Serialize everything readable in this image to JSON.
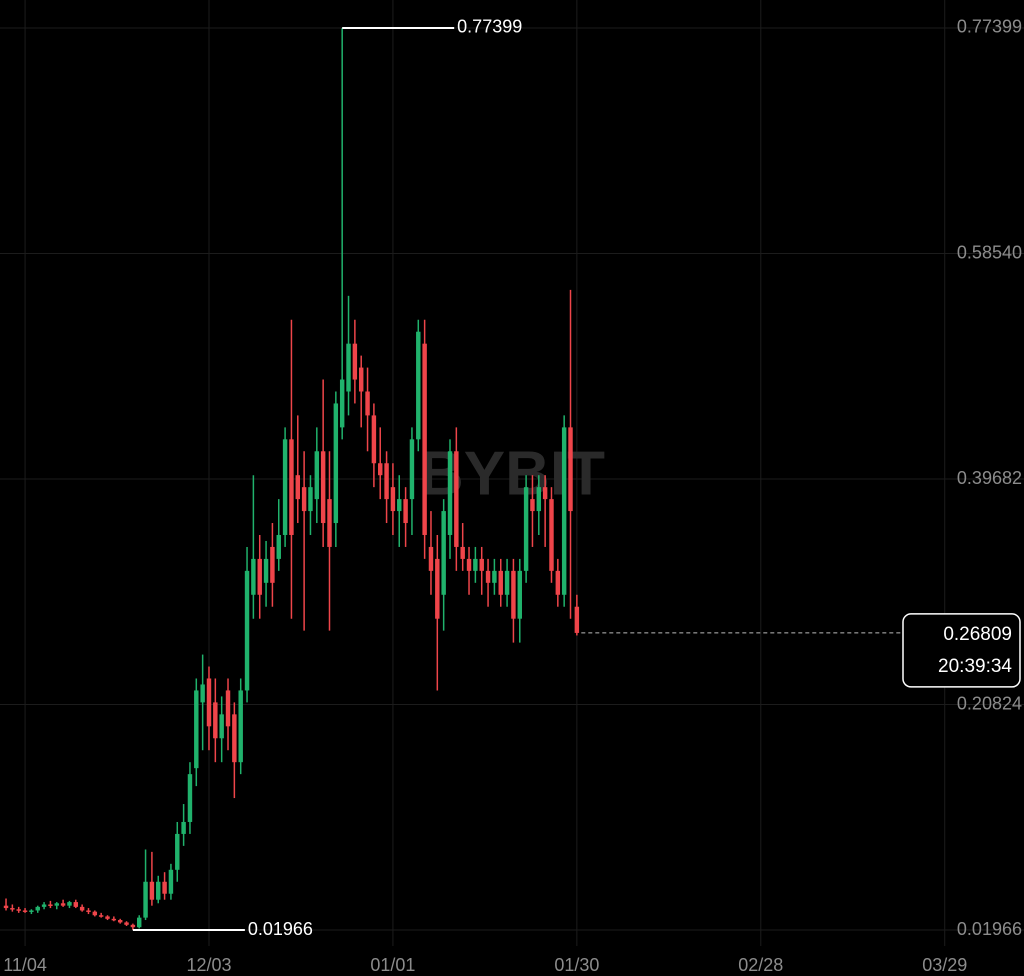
{
  "chart_data": {
    "type": "candlestick",
    "up_color": "#20b26c",
    "down_color": "#ef454a",
    "ylim": [
      0.00628,
      0.7974
    ],
    "yticks": [
      0.01966,
      0.20824,
      0.39682,
      {
        "value": 0.5854,
        "label": "0.58540"
      },
      0.77399
    ],
    "xlim": [
      -0.95,
      160.5
    ],
    "xticks": [
      {
        "value": 3,
        "label": "11/04"
      },
      {
        "value": 32,
        "label": "12/03"
      },
      {
        "value": 61,
        "label": "01/01"
      },
      {
        "value": 90,
        "label": "01/30"
      },
      {
        "value": 119,
        "label": "02/28"
      },
      {
        "value": 148,
        "label": "03/29"
      }
    ],
    "grid": true,
    "watermark": "BYBIT",
    "high_marker": {
      "value": 0.77399,
      "index": 53
    },
    "low_marker": {
      "value": 0.01966,
      "index": 20
    },
    "last_price": 0.26809,
    "countdown": "20:39:34",
    "ohlc": [
      [
        0.04,
        0.046,
        0.036,
        0.038
      ],
      [
        0.038,
        0.041,
        0.035,
        0.037
      ],
      [
        0.037,
        0.039,
        0.034,
        0.036
      ],
      [
        0.036,
        0.038,
        0.034,
        0.035
      ],
      [
        0.035,
        0.037,
        0.033,
        0.036
      ],
      [
        0.036,
        0.04,
        0.034,
        0.039
      ],
      [
        0.039,
        0.043,
        0.037,
        0.041
      ],
      [
        0.041,
        0.044,
        0.038,
        0.04
      ],
      [
        0.04,
        0.043,
        0.037,
        0.042
      ],
      [
        0.042,
        0.045,
        0.039,
        0.04
      ],
      [
        0.04,
        0.044,
        0.038,
        0.043
      ],
      [
        0.043,
        0.045,
        0.038,
        0.039
      ],
      [
        0.039,
        0.041,
        0.035,
        0.036
      ],
      [
        0.036,
        0.038,
        0.033,
        0.035
      ],
      [
        0.035,
        0.036,
        0.031,
        0.032
      ],
      [
        0.032,
        0.034,
        0.03,
        0.031
      ],
      [
        0.031,
        0.032,
        0.028,
        0.029
      ],
      [
        0.029,
        0.031,
        0.027,
        0.028
      ],
      [
        0.028,
        0.029,
        0.025,
        0.026
      ],
      [
        0.026,
        0.027,
        0.023,
        0.024
      ],
      [
        0.024,
        0.025,
        0.01966,
        0.022
      ],
      [
        0.022,
        0.032,
        0.021,
        0.03
      ],
      [
        0.03,
        0.087,
        0.028,
        0.06
      ],
      [
        0.06,
        0.085,
        0.04,
        0.045
      ],
      [
        0.045,
        0.065,
        0.042,
        0.06
      ],
      [
        0.06,
        0.068,
        0.045,
        0.05
      ],
      [
        0.05,
        0.075,
        0.045,
        0.07
      ],
      [
        0.07,
        0.11,
        0.06,
        0.1
      ],
      [
        0.1,
        0.125,
        0.09,
        0.11
      ],
      [
        0.11,
        0.16,
        0.1,
        0.15
      ],
      [
        0.155,
        0.23,
        0.14,
        0.22
      ],
      [
        0.21,
        0.25,
        0.17,
        0.225
      ],
      [
        0.23,
        0.24,
        0.17,
        0.19
      ],
      [
        0.21,
        0.23,
        0.16,
        0.18
      ],
      [
        0.18,
        0.215,
        0.16,
        0.2
      ],
      [
        0.22,
        0.23,
        0.17,
        0.19
      ],
      [
        0.2,
        0.21,
        0.13,
        0.16
      ],
      [
        0.16,
        0.23,
        0.15,
        0.22
      ],
      [
        0.22,
        0.34,
        0.21,
        0.32
      ],
      [
        0.3,
        0.4,
        0.28,
        0.33
      ],
      [
        0.33,
        0.35,
        0.28,
        0.3
      ],
      [
        0.31,
        0.345,
        0.29,
        0.33
      ],
      [
        0.34,
        0.36,
        0.29,
        0.31
      ],
      [
        0.33,
        0.38,
        0.32,
        0.35
      ],
      [
        0.35,
        0.44,
        0.34,
        0.43
      ],
      [
        0.43,
        0.53,
        0.28,
        0.35
      ],
      [
        0.4,
        0.45,
        0.36,
        0.38
      ],
      [
        0.39,
        0.42,
        0.27,
        0.37
      ],
      [
        0.37,
        0.4,
        0.35,
        0.39
      ],
      [
        0.38,
        0.44,
        0.36,
        0.42
      ],
      [
        0.42,
        0.48,
        0.34,
        0.36
      ],
      [
        0.38,
        0.42,
        0.27,
        0.34
      ],
      [
        0.36,
        0.47,
        0.34,
        0.46
      ],
      [
        0.44,
        0.77399,
        0.43,
        0.48
      ],
      [
        0.47,
        0.55,
        0.45,
        0.51
      ],
      [
        0.51,
        0.53,
        0.46,
        0.48
      ],
      [
        0.49,
        0.5,
        0.44,
        0.47
      ],
      [
        0.47,
        0.49,
        0.42,
        0.45
      ],
      [
        0.45,
        0.46,
        0.39,
        0.41
      ],
      [
        0.41,
        0.44,
        0.38,
        0.4
      ],
      [
        0.41,
        0.42,
        0.36,
        0.38
      ],
      [
        0.39,
        0.41,
        0.35,
        0.37
      ],
      [
        0.37,
        0.4,
        0.34,
        0.38
      ],
      [
        0.38,
        0.39,
        0.34,
        0.36
      ],
      [
        0.38,
        0.44,
        0.35,
        0.43
      ],
      [
        0.43,
        0.53,
        0.42,
        0.52
      ],
      [
        0.51,
        0.53,
        0.33,
        0.35
      ],
      [
        0.34,
        0.37,
        0.3,
        0.32
      ],
      [
        0.33,
        0.35,
        0.22,
        0.28
      ],
      [
        0.3,
        0.38,
        0.27,
        0.37
      ],
      [
        0.35,
        0.43,
        0.33,
        0.42
      ],
      [
        0.42,
        0.44,
        0.32,
        0.34
      ],
      [
        0.34,
        0.36,
        0.32,
        0.33
      ],
      [
        0.33,
        0.34,
        0.3,
        0.32
      ],
      [
        0.32,
        0.34,
        0.31,
        0.33
      ],
      [
        0.33,
        0.34,
        0.3,
        0.32
      ],
      [
        0.32,
        0.33,
        0.29,
        0.31
      ],
      [
        0.31,
        0.33,
        0.3,
        0.32
      ],
      [
        0.32,
        0.33,
        0.29,
        0.3
      ],
      [
        0.3,
        0.33,
        0.29,
        0.32
      ],
      [
        0.32,
        0.33,
        0.26,
        0.28
      ],
      [
        0.28,
        0.33,
        0.26,
        0.32
      ],
      [
        0.32,
        0.4,
        0.31,
        0.39
      ],
      [
        0.38,
        0.4,
        0.34,
        0.37
      ],
      [
        0.37,
        0.4,
        0.35,
        0.39
      ],
      [
        0.39,
        0.4,
        0.34,
        0.38
      ],
      [
        0.38,
        0.39,
        0.31,
        0.32
      ],
      [
        0.32,
        0.33,
        0.29,
        0.3
      ],
      [
        0.3,
        0.45,
        0.29,
        0.44
      ],
      [
        0.44,
        0.555,
        0.28,
        0.37
      ],
      [
        0.29,
        0.3,
        0.266,
        0.26809
      ]
    ]
  }
}
